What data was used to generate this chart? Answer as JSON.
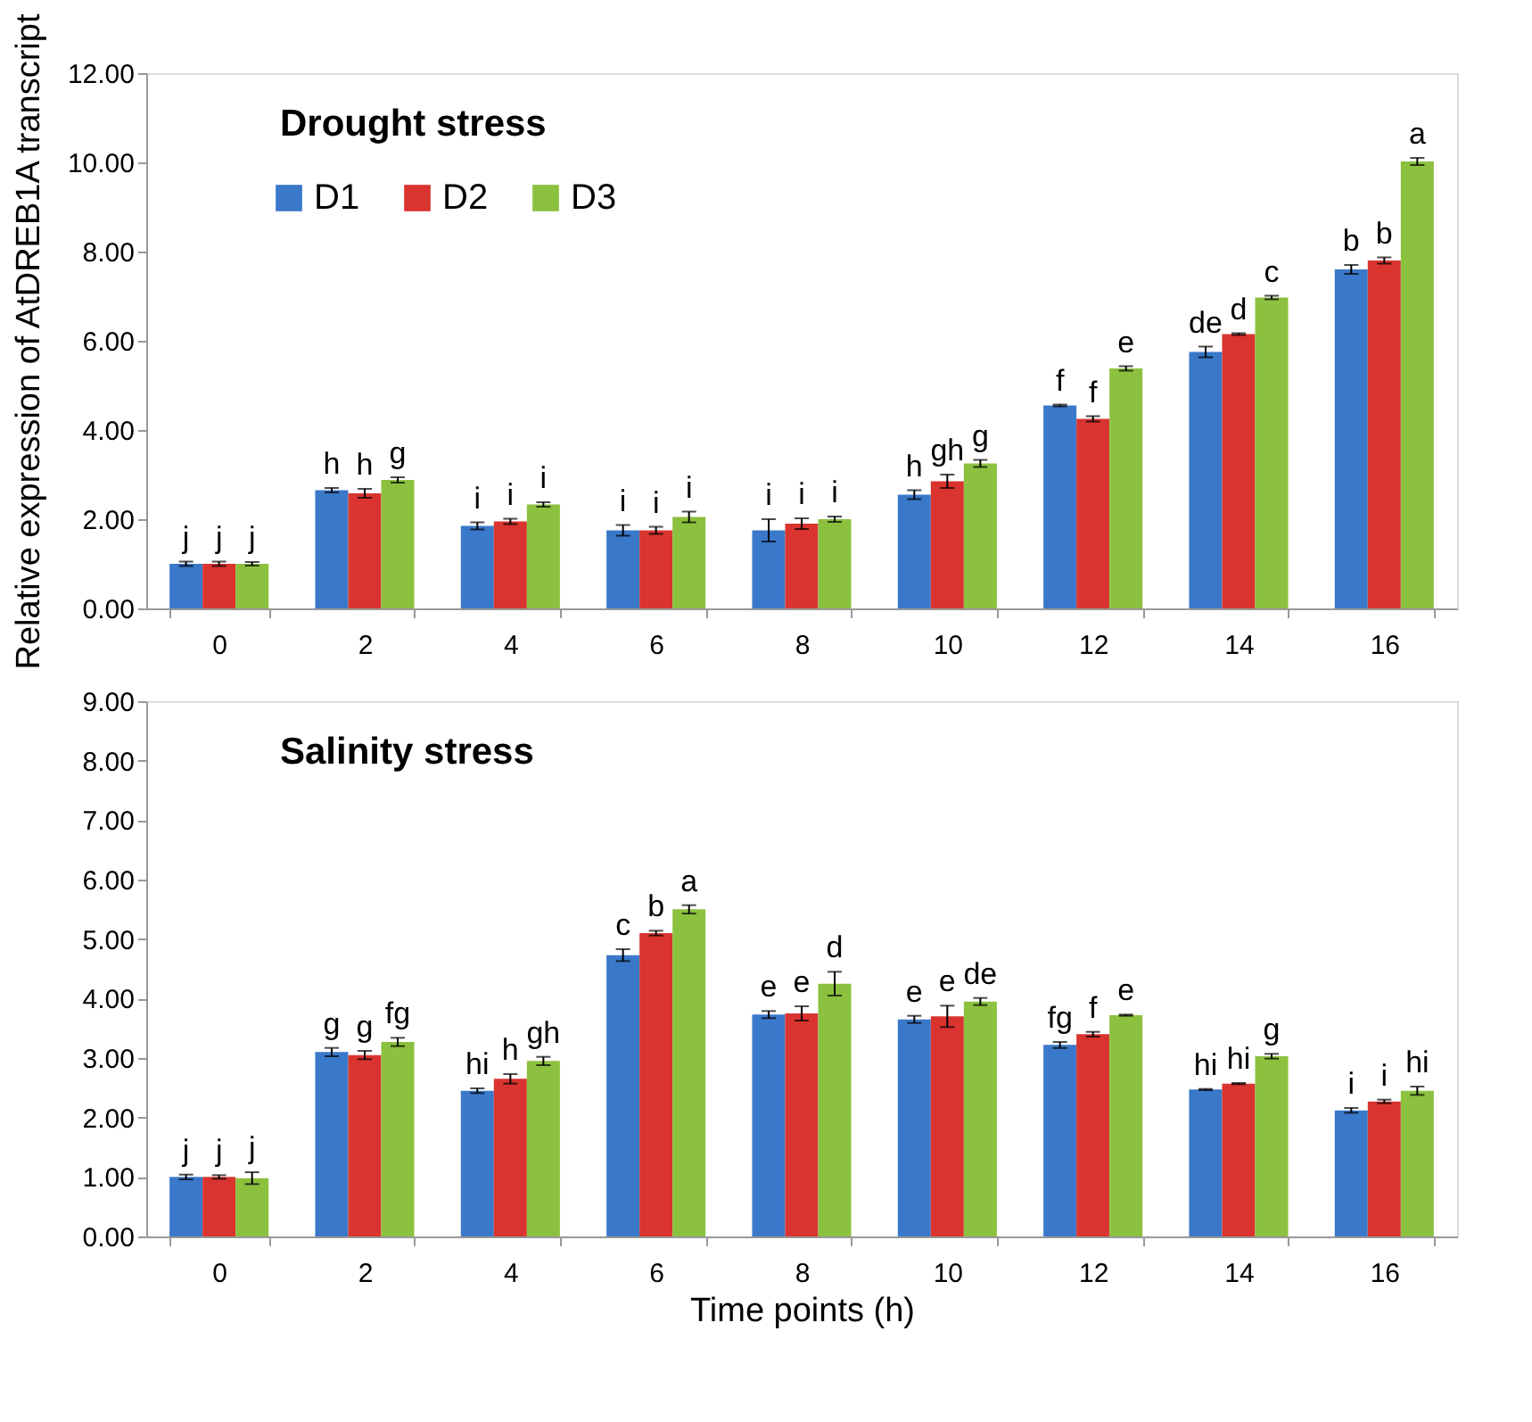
{
  "chart_data": [
    {
      "type": "bar",
      "title": "Drought stress",
      "ylabel": "Relative expression of AtDREB1A transcript",
      "categories": [
        "0",
        "2",
        "4",
        "6",
        "8",
        "10",
        "12",
        "14",
        "16"
      ],
      "series": [
        {
          "name": "D1",
          "color": "#3a78c9",
          "values": [
            1.0,
            2.65,
            1.85,
            1.75,
            1.75,
            2.55,
            4.55,
            5.75,
            7.6
          ],
          "errors": [
            0.05,
            0.05,
            0.08,
            0.12,
            0.25,
            0.1,
            0.02,
            0.12,
            0.1
          ],
          "value_labels": [
            "j",
            "h",
            "i",
            "i",
            "i",
            "h",
            "f",
            "de",
            "b"
          ]
        },
        {
          "name": "D2",
          "color": "#d9342f",
          "values": [
            1.0,
            2.58,
            1.95,
            1.75,
            1.9,
            2.85,
            4.25,
            6.15,
            7.8
          ],
          "errors": [
            0.05,
            0.1,
            0.06,
            0.08,
            0.12,
            0.15,
            0.06,
            0.02,
            0.07
          ],
          "value_labels": [
            "j",
            "h",
            "i",
            "i",
            "i",
            "gh",
            "f",
            "d",
            "b"
          ]
        },
        {
          "name": "D3",
          "color": "#8cc13f",
          "values": [
            1.0,
            2.88,
            2.33,
            2.05,
            2.0,
            3.25,
            5.38,
            6.97,
            10.02
          ],
          "errors": [
            0.04,
            0.06,
            0.05,
            0.12,
            0.06,
            0.08,
            0.05,
            0.04,
            0.08
          ],
          "value_labels": [
            "j",
            "g",
            "i",
            "i",
            "i",
            "g",
            "e",
            "c",
            "a"
          ]
        }
      ],
      "ylim": [
        0,
        12
      ],
      "yticks": [
        {
          "value": 0,
          "label": "0.00"
        },
        {
          "value": 2,
          "label": "2.00"
        },
        {
          "value": 4,
          "label": "4.00"
        },
        {
          "value": 6,
          "label": "6.00"
        },
        {
          "value": 8,
          "label": "8.00"
        },
        {
          "value": 10,
          "label": "10.00"
        },
        {
          "value": 12,
          "label": "12.00"
        }
      ],
      "grid": false,
      "legend": "top left"
    },
    {
      "type": "bar",
      "title": "Salinity stress",
      "xlabel": "Time points (h)",
      "categories": [
        "0",
        "2",
        "4",
        "6",
        "8",
        "10",
        "12",
        "14",
        "16"
      ],
      "series": [
        {
          "color": "#3a78c9",
          "values": [
            1.0,
            3.1,
            2.45,
            4.73,
            3.73,
            3.65,
            3.22,
            2.47,
            2.12
          ],
          "errors": [
            0.04,
            0.07,
            0.04,
            0.1,
            0.06,
            0.06,
            0.05,
            0.01,
            0.04
          ],
          "value_labels": [
            "j",
            "g",
            "hi",
            "c",
            "e",
            "e",
            "fg",
            "hi",
            "i"
          ]
        },
        {
          "color": "#d9342f",
          "values": [
            1.0,
            3.05,
            2.65,
            5.1,
            3.75,
            3.7,
            3.4,
            2.57,
            2.27
          ],
          "errors": [
            0.03,
            0.07,
            0.08,
            0.04,
            0.12,
            0.18,
            0.04,
            0.01,
            0.03
          ],
          "value_labels": [
            "j",
            "g",
            "h",
            "b",
            "e",
            "e",
            "f",
            "hi",
            "i"
          ]
        },
        {
          "color": "#8cc13f",
          "values": [
            0.98,
            3.27,
            2.95,
            5.5,
            4.25,
            3.95,
            3.72,
            3.03,
            2.45
          ],
          "errors": [
            0.1,
            0.07,
            0.07,
            0.07,
            0.2,
            0.06,
            0.01,
            0.04,
            0.07
          ],
          "value_labels": [
            "j",
            "fg",
            "gh",
            "a",
            "d",
            "de",
            "e",
            "g",
            "hi"
          ]
        }
      ],
      "ylim": [
        0,
        9
      ],
      "yticks": [
        {
          "value": 0,
          "label": "0.00"
        },
        {
          "value": 1,
          "label": "1.00"
        },
        {
          "value": 2,
          "label": "2.00"
        },
        {
          "value": 3,
          "label": "3.00"
        },
        {
          "value": 4,
          "label": "4.00"
        },
        {
          "value": 5,
          "label": "5.00"
        },
        {
          "value": 6,
          "label": "6.00"
        },
        {
          "value": 7,
          "label": "7.00"
        },
        {
          "value": 8,
          "label": "8.00"
        },
        {
          "value": 9,
          "label": "9.00"
        }
      ],
      "grid": false,
      "legend": false
    }
  ]
}
